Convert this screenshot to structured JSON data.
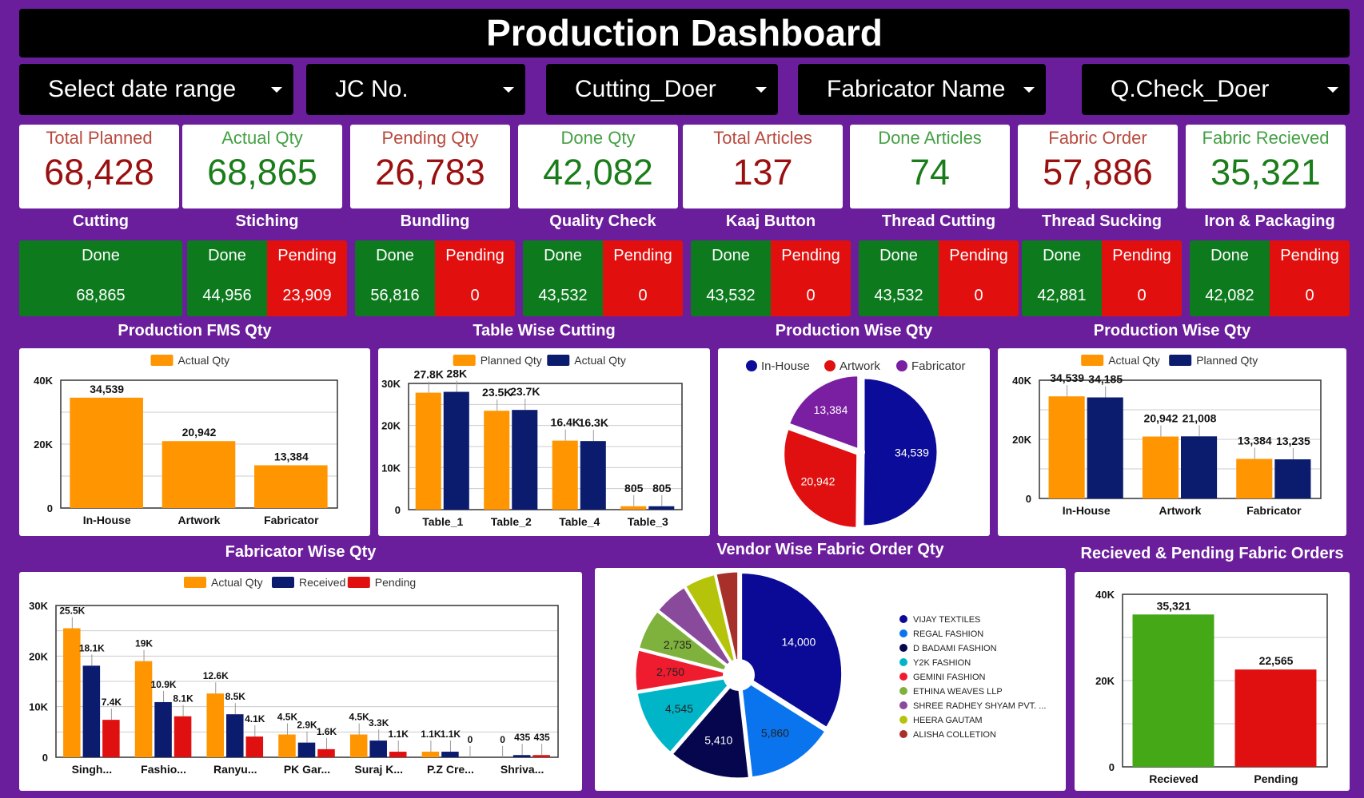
{
  "title": "Production Dashboard",
  "filters": [
    {
      "label": "Select date range"
    },
    {
      "label": "JC No."
    },
    {
      "label": "Cutting_Doer"
    },
    {
      "label": "Fabricator Name"
    },
    {
      "label": "Q.Check_Doer"
    }
  ],
  "kpis": [
    {
      "label": "Total Planned",
      "value": "68,428",
      "tone": "red"
    },
    {
      "label": "Actual Qty",
      "value": "68,865",
      "tone": "green"
    },
    {
      "label": "Pending Qty",
      "value": "26,783",
      "tone": "red"
    },
    {
      "label": "Done Qty",
      "value": "42,082",
      "tone": "green"
    },
    {
      "label": "Total Articles",
      "value": "137",
      "tone": "red"
    },
    {
      "label": "Done Articles",
      "value": "74",
      "tone": "green"
    },
    {
      "label": "Fabric Order",
      "value": "57,886",
      "tone": "red"
    },
    {
      "label": "Fabric Recieved",
      "value": "35,321",
      "tone": "green"
    }
  ],
  "stages": [
    {
      "title": "Cutting",
      "done_label": "Done",
      "done": "68,865"
    },
    {
      "title": "Stiching",
      "done_label": "Done",
      "done": "44,956",
      "pending_label": "Pending",
      "pending": "23,909"
    },
    {
      "title": "Bundling",
      "done_label": "Done",
      "done": "56,816",
      "pending_label": "Pending",
      "pending": "0"
    },
    {
      "title": "Quality Check",
      "done_label": "Done",
      "done": "43,532",
      "pending_label": "Pending",
      "pending": "0"
    },
    {
      "title": "Kaaj Button",
      "done_label": "Done",
      "done": "43,532",
      "pending_label": "Pending",
      "pending": "0"
    },
    {
      "title": "Thread Cutting",
      "done_label": "Done",
      "done": "43,532",
      "pending_label": "Pending",
      "pending": "0"
    },
    {
      "title": "Thread Sucking",
      "done_label": "Done",
      "done": "42,881",
      "pending_label": "Pending",
      "pending": "0"
    },
    {
      "title": "Iron & Packaging",
      "done_label": "Done",
      "done": "42,082",
      "pending_label": "Pending",
      "pending": "0"
    }
  ],
  "colors": {
    "orange": "#ff9500",
    "navy": "#0b1b6e",
    "red": "#e01010",
    "green": "#45a816",
    "done": "#0d7a1e",
    "pending": "#e20f0f",
    "background": "#6b1e9c"
  },
  "chart_data": [
    {
      "id": "fms",
      "type": "bar",
      "title": "Production FMS Qty",
      "categories": [
        "In-House",
        "Artwork",
        "Fabricator"
      ],
      "series": [
        {
          "name": "Actual Qty",
          "color": "#ff9500",
          "values": [
            34539,
            20942,
            13384
          ],
          "labels": [
            "34,539",
            "20,942",
            "13,384"
          ]
        }
      ],
      "ylim": [
        0,
        40000
      ],
      "yticks": [
        "0",
        "20K",
        "40K"
      ],
      "legend": "top",
      "grid": true
    },
    {
      "id": "table",
      "type": "bar",
      "title": "Table Wise Cutting",
      "categories": [
        "Table_1",
        "Table_2",
        "Table_4",
        "Table_3"
      ],
      "series": [
        {
          "name": "Planned Qty",
          "color": "#ff9500",
          "values": [
            27800,
            23500,
            16400,
            805
          ],
          "labels": [
            "27.8K",
            "23.5K",
            "16.4K",
            "805"
          ]
        },
        {
          "name": "Actual Qty",
          "color": "#0b1b6e",
          "values": [
            28000,
            23700,
            16300,
            805
          ],
          "labels": [
            "28K",
            "23.7K",
            "16.3K",
            "805"
          ]
        }
      ],
      "ylim": [
        0,
        30000
      ],
      "yticks": [
        "0",
        "10K",
        "20K",
        "30K"
      ],
      "legend": "top",
      "grid": true
    },
    {
      "id": "prodpie",
      "type": "pie",
      "title": "Production Wise Qty",
      "categories": [
        "In-House",
        "Artwork",
        "Fabricator"
      ],
      "values": [
        34539,
        20942,
        13384
      ],
      "labels": [
        "34,539",
        "20,942",
        "13,384"
      ],
      "colors": [
        "#0c0c9a",
        "#e01010",
        "#7b1fa2"
      ],
      "legend": "top"
    },
    {
      "id": "prodbar",
      "type": "bar",
      "title": "Production Wise Qty",
      "categories": [
        "In-House",
        "Artwork",
        "Fabricator"
      ],
      "series": [
        {
          "name": "Actual Qty",
          "color": "#ff9500",
          "values": [
            34539,
            20942,
            13384
          ],
          "labels": [
            "34,539",
            "20,942",
            "13,384"
          ]
        },
        {
          "name": "Planned Qty",
          "color": "#0b1b6e",
          "values": [
            34185,
            21008,
            13235
          ],
          "labels": [
            "34,185",
            "21,008",
            "13,235"
          ]
        }
      ],
      "ylim": [
        0,
        40000
      ],
      "yticks": [
        "0",
        "20K",
        "40K"
      ],
      "legend": "top",
      "grid": true
    },
    {
      "id": "fab",
      "type": "bar",
      "title": "Fabricator Wise Qty",
      "categories": [
        "Singh...",
        "Fashio...",
        "Ranyu...",
        "PK Gar...",
        "Suraj K...",
        "P.Z Cre...",
        "Shriva..."
      ],
      "series": [
        {
          "name": "Actual Qty",
          "color": "#ff9500",
          "values": [
            25500,
            19000,
            12600,
            4500,
            4500,
            1100,
            0
          ],
          "labels": [
            "25.5K",
            "19K",
            "12.6K",
            "4.5K",
            "4.5K",
            "1.1K",
            "0"
          ]
        },
        {
          "name": "Received",
          "color": "#0b1b6e",
          "values": [
            18100,
            10900,
            8500,
            2900,
            3300,
            1100,
            435
          ],
          "labels": [
            "18.1K",
            "10.9K",
            "8.5K",
            "2.9K",
            "3.3K",
            "1.1K",
            "435"
          ]
        },
        {
          "name": "Pending",
          "color": "#e01010",
          "values": [
            7400,
            8100,
            4100,
            1600,
            1100,
            0,
            435
          ],
          "labels": [
            "7.4K",
            "8.1K",
            "4.1K",
            "1.6K",
            "1.1K",
            "0",
            "435"
          ]
        }
      ],
      "ylim": [
        0,
        30000
      ],
      "yticks": [
        "0",
        "10K",
        "20K",
        "30K"
      ],
      "legend": "top",
      "grid": true
    },
    {
      "id": "vendor",
      "type": "pie",
      "title": "Vendor Wise Fabric Order Qty",
      "categories": [
        "VIJAY TEXTILES",
        "REGAL FASHION",
        "D BADAMI FASHION",
        "Y2K FASHION",
        "GEMINI FASHION",
        "ETHINA WEAVES LLP",
        "SHREE RADHEY SHYAM PVT. ...",
        "HEERA GAUTAM",
        "ALISHA COLLETION"
      ],
      "values": [
        14000,
        5860,
        5410,
        4545,
        2750,
        2735,
        2300,
        2100,
        1500
      ],
      "labels": [
        "14,000",
        "5,860",
        "5,410",
        "4,545",
        "2,750",
        "2,735",
        "",
        "",
        ""
      ],
      "colors": [
        "#0a0a96",
        "#0a74ef",
        "#06064e",
        "#00b5c8",
        "#ee1c2e",
        "#7fb23c",
        "#8a4a9c",
        "#b5c40a",
        "#a8302a"
      ],
      "legend": "right",
      "donut": true
    },
    {
      "id": "fabric",
      "type": "bar",
      "title": "Recieved & Pending Fabric Orders",
      "categories": [
        "Recieved",
        "Pending"
      ],
      "series": [
        {
          "colors": [
            "#45a816",
            "#e01010"
          ],
          "values": [
            35321,
            22565
          ],
          "labels": [
            "35,321",
            "22,565"
          ]
        }
      ],
      "ylim": [
        0,
        40000
      ],
      "yticks": [
        "0",
        "20K",
        "40K"
      ],
      "grid": true
    }
  ]
}
